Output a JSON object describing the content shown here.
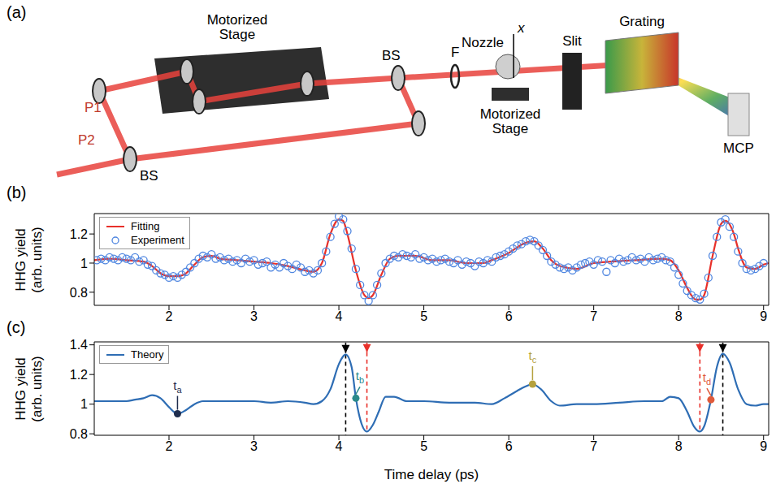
{
  "diagram": {
    "panel": "(a)",
    "beam_1": "P1",
    "beam_2": "P2",
    "beam_splitter_in": "BS",
    "beam_splitter_out": "BS",
    "delay_stage": "Motorized Stage",
    "filter": "F",
    "nozzle": "Nozzle",
    "nozzle_axis": "x",
    "nozzle_stage": "Motorized Stage",
    "slit": "Slit",
    "grating": "Grating",
    "detector": "MCP"
  },
  "chart_data": [
    {
      "type": "line",
      "panel": "(b)",
      "xlim": [
        1.12,
        9.06
      ],
      "xticks": [
        2,
        3,
        4,
        5,
        6,
        7,
        8,
        9
      ],
      "ylim": [
        0.71,
        1.34
      ],
      "yticks": [
        0.8,
        1,
        1.2
      ],
      "ylabel": [
        "HHG yield",
        "(arb. units)"
      ],
      "legend": "upper left",
      "grid": false,
      "series": [
        {
          "name": "Fitting",
          "type": "line",
          "color": "#e8302a",
          "x": [
            1.12,
            1.3,
            1.5,
            1.7,
            1.8,
            1.9,
            2.0,
            2.1,
            2.2,
            2.3,
            2.4,
            2.5,
            2.6,
            2.8,
            3.0,
            3.2,
            3.4,
            3.6,
            3.7,
            3.8,
            3.9,
            4.0,
            4.05,
            4.1,
            4.2,
            4.3,
            4.35,
            4.4,
            4.5,
            4.6,
            4.7,
            4.9,
            5.1,
            5.3,
            5.5,
            5.7,
            5.8,
            6.0,
            6.2,
            6.3,
            6.4,
            6.5,
            6.6,
            6.8,
            7.0,
            7.2,
            7.5,
            7.8,
            7.9,
            8.0,
            8.1,
            8.2,
            8.25,
            8.3,
            8.4,
            8.5,
            8.55,
            8.65,
            8.7,
            8.8,
            8.9,
            9.0,
            9.06
          ],
          "values": [
            1.02,
            1.03,
            1.02,
            1.01,
            0.98,
            0.93,
            0.91,
            0.91,
            0.93,
            0.99,
            1.04,
            1.05,
            1.03,
            1.02,
            1.01,
            1.0,
            0.98,
            0.95,
            0.94,
            1.0,
            1.2,
            1.3,
            1.29,
            1.2,
            0.95,
            0.78,
            0.76,
            0.78,
            0.92,
            1.03,
            1.05,
            1.05,
            1.02,
            1.02,
            1.0,
            1.0,
            1.02,
            1.07,
            1.14,
            1.15,
            1.1,
            1.02,
            0.98,
            0.96,
            1.0,
            1.01,
            1.02,
            1.03,
            1.02,
            0.95,
            0.83,
            0.75,
            0.75,
            0.78,
            1.05,
            1.27,
            1.29,
            1.2,
            1.1,
            0.97,
            0.96,
            0.99,
            1.0
          ]
        },
        {
          "name": "Experiment",
          "type": "scatter",
          "marker": "open_circle",
          "color": "#4f86e0",
          "x": [
            1.15,
            1.2,
            1.25,
            1.3,
            1.35,
            1.4,
            1.45,
            1.5,
            1.55,
            1.6,
            1.65,
            1.7,
            1.75,
            1.8,
            1.85,
            1.9,
            1.95,
            2.0,
            2.05,
            2.1,
            2.15,
            2.2,
            2.25,
            2.3,
            2.35,
            2.4,
            2.45,
            2.5,
            2.55,
            2.6,
            2.65,
            2.7,
            2.75,
            2.8,
            2.85,
            2.9,
            2.95,
            3.0,
            3.05,
            3.1,
            3.15,
            3.2,
            3.25,
            3.3,
            3.35,
            3.4,
            3.45,
            3.5,
            3.55,
            3.6,
            3.65,
            3.7,
            3.75,
            3.8,
            3.85,
            3.9,
            3.95,
            4.0,
            4.05,
            4.1,
            4.15,
            4.2,
            4.25,
            4.3,
            4.35,
            4.4,
            4.45,
            4.5,
            4.55,
            4.6,
            4.65,
            4.7,
            4.75,
            4.8,
            4.85,
            4.9,
            4.95,
            5.0,
            5.05,
            5.1,
            5.15,
            5.2,
            5.25,
            5.3,
            5.35,
            5.4,
            5.45,
            5.5,
            5.55,
            5.6,
            5.65,
            5.7,
            5.75,
            5.8,
            5.85,
            5.9,
            5.95,
            6.0,
            6.05,
            6.1,
            6.15,
            6.2,
            6.25,
            6.3,
            6.35,
            6.4,
            6.45,
            6.5,
            6.55,
            6.6,
            6.65,
            6.7,
            6.75,
            6.8,
            6.85,
            6.9,
            6.95,
            7.0,
            7.05,
            7.1,
            7.15,
            7.2,
            7.25,
            7.3,
            7.35,
            7.4,
            7.45,
            7.5,
            7.55,
            7.6,
            7.65,
            7.7,
            7.75,
            7.8,
            7.85,
            7.9,
            7.95,
            8.0,
            8.05,
            8.1,
            8.15,
            8.2,
            8.25,
            8.3,
            8.35,
            8.4,
            8.45,
            8.5,
            8.55,
            8.6,
            8.65,
            8.7,
            8.75,
            8.8,
            8.85,
            8.9,
            8.95,
            9.0
          ],
          "values": [
            1.02,
            1.03,
            1.02,
            1.04,
            1.03,
            1.02,
            1.04,
            1.03,
            1.02,
            1.04,
            1.01,
            1.02,
            0.99,
            0.98,
            0.95,
            0.93,
            0.92,
            0.9,
            0.91,
            0.9,
            0.92,
            0.94,
            0.97,
            1.0,
            1.03,
            1.05,
            1.04,
            1.06,
            1.03,
            1.04,
            1.02,
            1.03,
            1.01,
            1.02,
            1.0,
            1.03,
            1.01,
            1.02,
            0.99,
            1.0,
            1.01,
            0.97,
            0.99,
            0.97,
            1.0,
            0.98,
            0.96,
            0.99,
            0.97,
            0.94,
            0.95,
            0.93,
            0.95,
            1.0,
            1.08,
            1.18,
            1.27,
            1.32,
            1.3,
            1.22,
            1.1,
            0.96,
            0.85,
            0.78,
            0.74,
            0.78,
            0.85,
            0.93,
            1.0,
            1.03,
            1.05,
            1.04,
            1.06,
            1.05,
            1.04,
            1.06,
            1.03,
            1.04,
            1.02,
            1.03,
            1.01,
            1.02,
            1.03,
            1.01,
            1.0,
            1.02,
            0.99,
            1.01,
            1.0,
            0.98,
            1.01,
            1.0,
            1.02,
            1.01,
            1.04,
            1.05,
            1.06,
            1.08,
            1.1,
            1.12,
            1.13,
            1.15,
            1.16,
            1.15,
            1.12,
            1.09,
            1.05,
            1.01,
            0.99,
            0.97,
            0.96,
            0.97,
            0.95,
            0.97,
            0.99,
            1.0,
            1.01,
            0.99,
            1.02,
            1.01,
            0.94,
            1.02,
            1.0,
            1.03,
            1.01,
            1.02,
            1.04,
            1.02,
            1.03,
            1.01,
            1.04,
            1.02,
            1.03,
            1.04,
            1.02,
            1.01,
            0.97,
            0.92,
            0.86,
            0.81,
            0.78,
            0.76,
            0.75,
            0.79,
            0.9,
            1.05,
            1.18,
            1.28,
            1.3,
            1.25,
            1.18,
            1.08,
            1.0,
            0.96,
            0.95,
            0.96,
            0.98,
            1.0
          ]
        }
      ]
    },
    {
      "type": "line",
      "panel": "(c)",
      "xlabel": "Time delay (ps)",
      "xlim": [
        1.12,
        9.06
      ],
      "xticks": [
        2,
        3,
        4,
        5,
        6,
        7,
        8,
        9
      ],
      "ylim": [
        0.79,
        1.42
      ],
      "yticks": [
        0.8,
        1,
        1.2,
        1.4
      ],
      "ylabel": [
        "HHG yield",
        "(arb. units)"
      ],
      "legend": "upper left",
      "grid": false,
      "series": [
        {
          "name": "Theory",
          "type": "line",
          "color": "#2e6db4",
          "x": [
            1.12,
            1.3,
            1.5,
            1.6,
            1.7,
            1.8,
            1.9,
            2.0,
            2.1,
            2.2,
            2.3,
            2.4,
            2.6,
            2.8,
            3.0,
            3.2,
            3.4,
            3.6,
            3.7,
            3.8,
            3.9,
            4.0,
            4.08,
            4.15,
            4.2,
            4.25,
            4.33,
            4.4,
            4.47,
            4.55,
            4.65,
            4.8,
            5.0,
            5.3,
            5.6,
            5.8,
            5.95,
            6.1,
            6.2,
            6.28,
            6.38,
            6.5,
            6.6,
            6.8,
            7.0,
            7.3,
            7.6,
            7.8,
            7.9,
            8.0,
            8.1,
            8.18,
            8.25,
            8.3,
            8.38,
            8.45,
            8.52,
            8.6,
            8.7,
            8.8,
            8.9,
            9.0,
            9.06
          ],
          "values": [
            1.02,
            1.02,
            1.02,
            1.03,
            1.04,
            1.06,
            1.04,
            0.98,
            0.935,
            0.96,
            1.0,
            1.02,
            1.02,
            1.02,
            1.02,
            1.01,
            1.02,
            1.01,
            1.0,
            1.02,
            1.1,
            1.27,
            1.335,
            1.25,
            1.04,
            0.9,
            0.815,
            0.86,
            0.95,
            1.05,
            1.05,
            1.02,
            1.02,
            1.01,
            1.01,
            1.0,
            1.04,
            1.09,
            1.12,
            1.135,
            1.1,
            1.02,
            0.99,
            1.0,
            1.0,
            1.01,
            1.02,
            1.02,
            1.05,
            1.04,
            0.95,
            0.85,
            0.815,
            0.85,
            1.03,
            1.25,
            1.34,
            1.28,
            1.1,
            1.0,
            0.99,
            1.0,
            1.0
          ]
        }
      ],
      "arrows": [
        {
          "x": 4.08,
          "y_from": 1.415,
          "y_to": 1.345,
          "color": "#000000"
        },
        {
          "x": 4.33,
          "y_from": 1.415,
          "y_to": 1.35,
          "color": "#e8302a"
        },
        {
          "x": 8.25,
          "y_from": 1.415,
          "y_to": 1.35,
          "color": "#e8302a"
        },
        {
          "x": 8.52,
          "y_from": 1.415,
          "y_to": 1.35,
          "color": "#000000"
        }
      ],
      "vlines": [
        {
          "x": 4.08,
          "y_from": 1.335,
          "y_to": 0.79,
          "color": "#000000",
          "line_style": "dashed"
        },
        {
          "x": 4.33,
          "y_from": 1.35,
          "y_to": 0.815,
          "color": "#e8302a",
          "line_style": "dashed"
        },
        {
          "x": 8.25,
          "y_from": 1.35,
          "y_to": 0.815,
          "color": "#e8302a",
          "line_style": "dashed"
        },
        {
          "x": 8.52,
          "y_from": 1.34,
          "y_to": 0.79,
          "color": "#000000",
          "line_style": "dashed"
        }
      ],
      "annotations": [
        {
          "label": "t",
          "sub": "a",
          "x": 2.1,
          "y": 0.935,
          "color": "#1f2d4d"
        },
        {
          "label": "t",
          "sub": "b",
          "x": 4.2,
          "y": 1.04,
          "color": "#2a8a8a"
        },
        {
          "label": "t",
          "sub": "c",
          "x": 6.28,
          "y": 1.135,
          "color": "#b5a13e"
        },
        {
          "label": "t",
          "sub": "d",
          "x": 8.38,
          "y": 1.03,
          "color": "#e05a3a"
        }
      ]
    }
  ]
}
